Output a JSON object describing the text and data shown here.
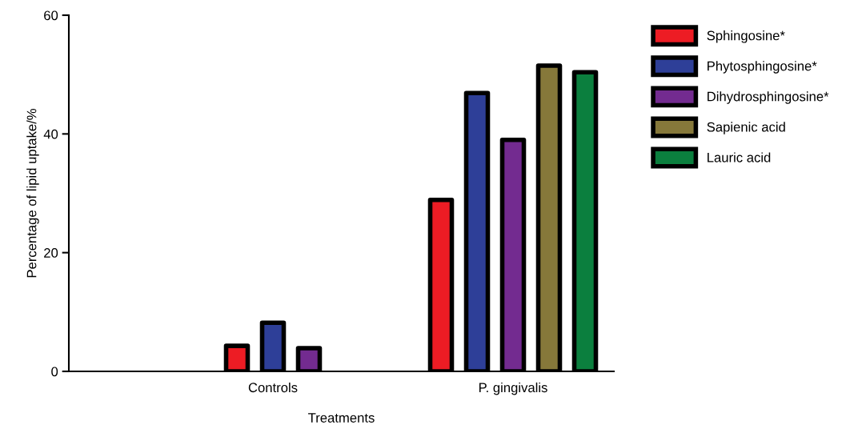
{
  "chart_data": {
    "type": "bar",
    "xlabel": "Treatments",
    "ylabel": "Percentage of lipid uptake/%",
    "categories": [
      "Controls",
      "P. gingivalis"
    ],
    "series": [
      {
        "name": "Sphingosine*",
        "color": "#ed1c24",
        "values": [
          4.3,
          28.9
        ]
      },
      {
        "name": "Phytosphingosine*",
        "color": "#2e3f98",
        "values": [
          8.2,
          46.9
        ]
      },
      {
        "name": "Dihydrosphingosine*",
        "color": "#732b90",
        "values": [
          3.9,
          39.0
        ]
      },
      {
        "name": "Sapienic acid",
        "color": "#86783a",
        "values": [
          null,
          51.5
        ]
      },
      {
        "name": "Lauric acid",
        "color": "#0b7f3e",
        "values": [
          null,
          50.4
        ]
      }
    ],
    "ylim": [
      0,
      60
    ],
    "yticks": [
      0,
      20,
      40,
      60
    ],
    "grid": false,
    "legend": "top right"
  }
}
